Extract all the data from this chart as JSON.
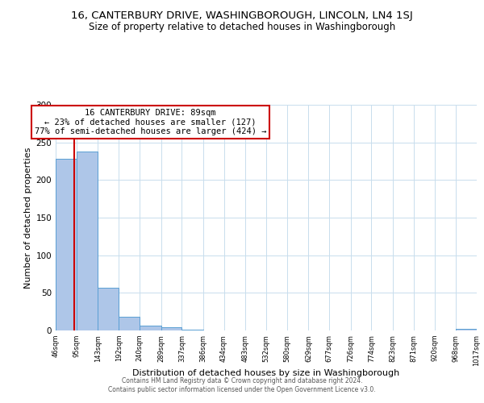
{
  "title_line1": "16, CANTERBURY DRIVE, WASHINGBOROUGH, LINCOLN, LN4 1SJ",
  "title_line2": "Size of property relative to detached houses in Washingborough",
  "xlabel": "Distribution of detached houses by size in Washingborough",
  "ylabel": "Number of detached properties",
  "bar_edges": [
    46,
    95,
    143,
    192,
    240,
    289,
    337,
    386,
    434,
    483,
    532,
    580,
    629,
    677,
    726,
    774,
    823,
    871,
    920,
    968,
    1017
  ],
  "bar_heights": [
    228,
    238,
    57,
    18,
    6,
    4,
    1,
    0,
    0,
    0,
    0,
    0,
    0,
    0,
    0,
    0,
    0,
    0,
    0,
    2
  ],
  "bar_color": "#aec6e8",
  "bar_edge_color": "#5a9fd4",
  "ylim": [
    0,
    300
  ],
  "yticks": [
    0,
    50,
    100,
    150,
    200,
    250,
    300
  ],
  "property_size": 89,
  "vline_color": "#cc0000",
  "annotation_title": "16 CANTERBURY DRIVE: 89sqm",
  "annotation_line2": "← 23% of detached houses are smaller (127)",
  "annotation_line3": "77% of semi-detached houses are larger (424) →",
  "annotation_box_color": "#ffffff",
  "annotation_box_edge": "#cc0000",
  "tick_labels": [
    "46sqm",
    "95sqm",
    "143sqm",
    "192sqm",
    "240sqm",
    "289sqm",
    "337sqm",
    "386sqm",
    "434sqm",
    "483sqm",
    "532sqm",
    "580sqm",
    "629sqm",
    "677sqm",
    "726sqm",
    "774sqm",
    "823sqm",
    "871sqm",
    "920sqm",
    "968sqm",
    "1017sqm"
  ],
  "footer_line1": "Contains HM Land Registry data © Crown copyright and database right 2024.",
  "footer_line2": "Contains public sector information licensed under the Open Government Licence v3.0.",
  "background_color": "#ffffff",
  "grid_color": "#c8dded",
  "title1_fontsize": 9.5,
  "title2_fontsize": 8.5,
  "xlabel_fontsize": 8,
  "ylabel_fontsize": 8,
  "tick_fontsize": 6,
  "footer_fontsize": 5.5
}
